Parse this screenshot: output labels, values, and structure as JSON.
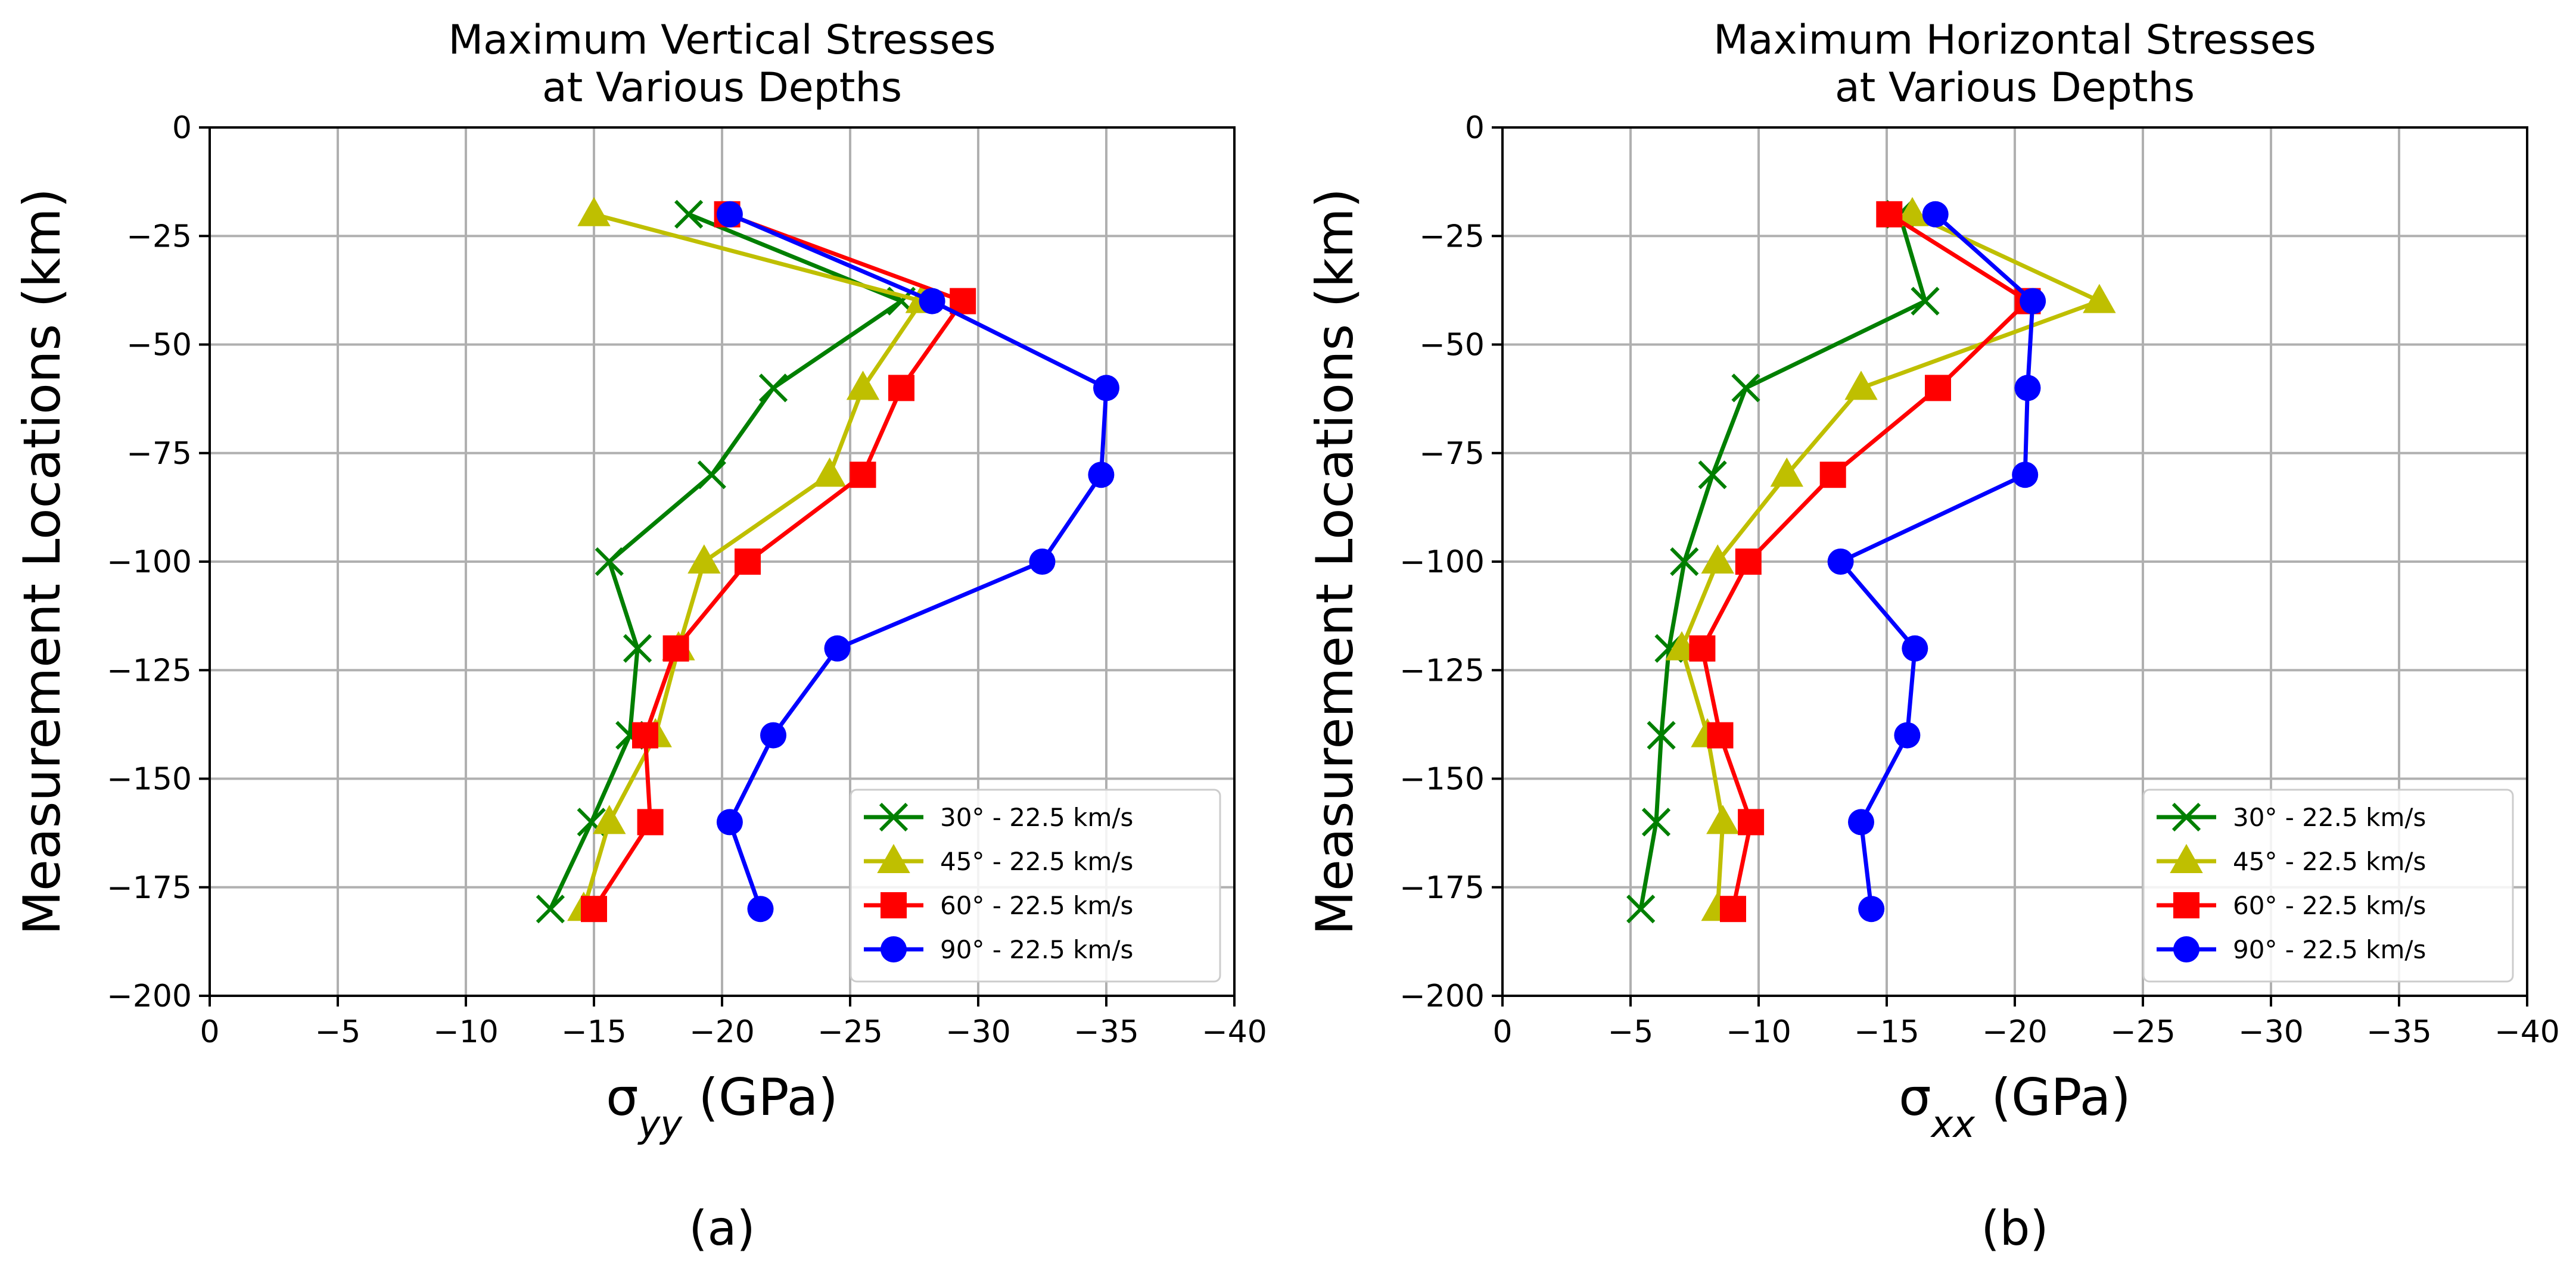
{
  "panels": [
    {
      "caption": "(a)",
      "chart_data": {
        "type": "line",
        "title": "Maximum Vertical Stresses\nat Various Depths",
        "xlabel": {
          "symbol": "σ",
          "sub": "yy",
          "unit": " (GPa)"
        },
        "ylabel": "Measurement Locations (km)",
        "xlim": [
          0,
          -40
        ],
        "ylim": [
          -200,
          0
        ],
        "xticks": [
          0,
          -5,
          -10,
          -15,
          -20,
          -25,
          -30,
          -35,
          -40
        ],
        "yticks": [
          0,
          -25,
          -50,
          -75,
          -100,
          -125,
          -150,
          -175,
          -200
        ],
        "grid": true,
        "legend_position": "lower-right",
        "series": [
          {
            "name": "30° - 22.5 km/s",
            "color": "#007f00",
            "marker": "x",
            "points": [
              [
                -18.7,
                -20
              ],
              [
                -27.0,
                -40
              ],
              [
                -22.0,
                -60
              ],
              [
                -19.6,
                -80
              ],
              [
                -15.6,
                -100
              ],
              [
                -16.7,
                -120
              ],
              [
                -16.4,
                -140
              ],
              [
                -14.9,
                -160
              ],
              [
                -13.3,
                -180
              ]
            ]
          },
          {
            "name": "45° - 22.5 km/s",
            "color": "#bfbf00",
            "marker": "triangle",
            "points": [
              [
                -15.0,
                -20
              ],
              [
                -27.8,
                -40
              ],
              [
                -25.5,
                -60
              ],
              [
                -24.2,
                -80
              ],
              [
                -19.3,
                -100
              ],
              [
                -18.3,
                -120
              ],
              [
                -17.4,
                -140
              ],
              [
                -15.6,
                -160
              ],
              [
                -14.6,
                -180
              ]
            ]
          },
          {
            "name": "60° - 22.5 km/s",
            "color": "#ff0000",
            "marker": "square",
            "points": [
              [
                -20.2,
                -20
              ],
              [
                -29.4,
                -40
              ],
              [
                -27.0,
                -60
              ],
              [
                -25.5,
                -80
              ],
              [
                -21.0,
                -100
              ],
              [
                -18.2,
                -120
              ],
              [
                -17.0,
                -140
              ],
              [
                -17.2,
                -160
              ],
              [
                -15.0,
                -180
              ]
            ]
          },
          {
            "name": "90° - 22.5 km/s",
            "color": "#0000ff",
            "marker": "circle",
            "points": [
              [
                -20.3,
                -20
              ],
              [
                -28.2,
                -40
              ],
              [
                -35.0,
                -60
              ],
              [
                -34.8,
                -80
              ],
              [
                -32.5,
                -100
              ],
              [
                -24.5,
                -120
              ],
              [
                -22.0,
                -140
              ],
              [
                -20.3,
                -160
              ],
              [
                -21.5,
                -180
              ]
            ]
          }
        ]
      }
    },
    {
      "caption": "(b)",
      "chart_data": {
        "type": "line",
        "title": "Maximum Horizontal Stresses\nat Various Depths",
        "xlabel": {
          "symbol": "σ",
          "sub": "xx",
          "unit": " (GPa)"
        },
        "ylabel": "Measurement Locations (km)",
        "xlim": [
          0,
          -40
        ],
        "ylim": [
          -200,
          0
        ],
        "xticks": [
          0,
          -5,
          -10,
          -15,
          -20,
          -25,
          -30,
          -35,
          -40
        ],
        "yticks": [
          0,
          -25,
          -50,
          -75,
          -100,
          -125,
          -150,
          -175,
          -200
        ],
        "grid": true,
        "legend_position": "lower-right",
        "series": [
          {
            "name": "30° - 22.5 km/s",
            "color": "#007f00",
            "marker": "x",
            "points": [
              [
                -15.5,
                -20
              ],
              [
                -16.5,
                -40
              ],
              [
                -9.5,
                -60
              ],
              [
                -8.2,
                -80
              ],
              [
                -7.1,
                -100
              ],
              [
                -6.5,
                -120
              ],
              [
                -6.2,
                -140
              ],
              [
                -6.0,
                -160
              ],
              [
                -5.4,
                -180
              ]
            ]
          },
          {
            "name": "45° - 22.5 km/s",
            "color": "#bfbf00",
            "marker": "triangle",
            "points": [
              [
                -16.0,
                -20
              ],
              [
                -23.3,
                -40
              ],
              [
                -14.0,
                -60
              ],
              [
                -11.1,
                -80
              ],
              [
                -8.4,
                -100
              ],
              [
                -7.0,
                -120
              ],
              [
                -8.0,
                -140
              ],
              [
                -8.6,
                -160
              ],
              [
                -8.4,
                -180
              ]
            ]
          },
          {
            "name": "60° - 22.5 km/s",
            "color": "#ff0000",
            "marker": "square",
            "points": [
              [
                -15.1,
                -20
              ],
              [
                -20.5,
                -40
              ],
              [
                -17.0,
                -60
              ],
              [
                -12.9,
                -80
              ],
              [
                -9.6,
                -100
              ],
              [
                -7.8,
                -120
              ],
              [
                -8.5,
                -140
              ],
              [
                -9.7,
                -160
              ],
              [
                -9.0,
                -180
              ]
            ]
          },
          {
            "name": "90° - 22.5 km/s",
            "color": "#0000ff",
            "marker": "circle",
            "points": [
              [
                -16.9,
                -20
              ],
              [
                -20.7,
                -40
              ],
              [
                -20.5,
                -60
              ],
              [
                -20.4,
                -80
              ],
              [
                -13.2,
                -100
              ],
              [
                -16.1,
                -120
              ],
              [
                -15.8,
                -140
              ],
              [
                -14.0,
                -160
              ],
              [
                -14.4,
                -180
              ]
            ]
          }
        ]
      }
    }
  ]
}
